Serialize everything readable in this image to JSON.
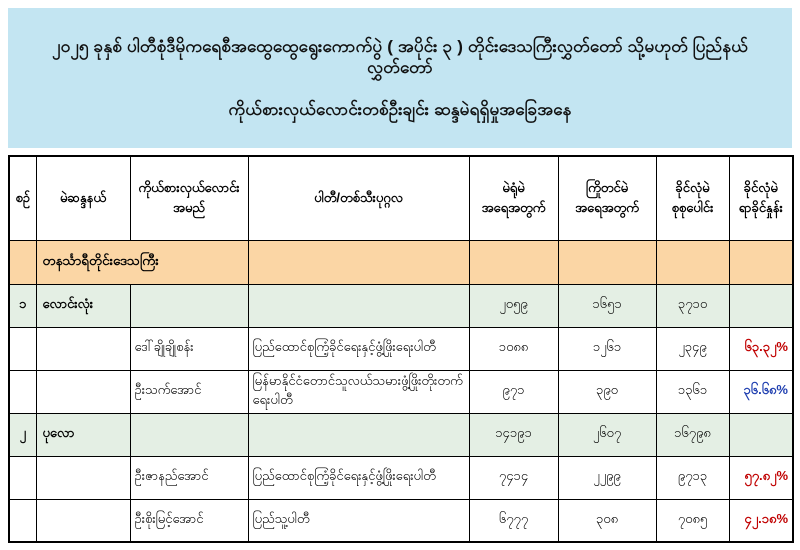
{
  "title": {
    "line1": "၂၀၂၅ ခုနှစ် ပါတီစုံဒီမိုကရေစီအထွေထွေရွေးကောက်ပွဲ ( အပိုင်း ၃ ) တိုင်းဒေသကြီးလွှတ်တော် သို့မဟုတ် ပြည်နယ်လွှတ်တော်",
    "line2": "ကိုယ်စားလှယ်လောင်းတစ်ဦးချင်း ဆန္ဒမဲရရှိမှုအခြေအနေ"
  },
  "table": {
    "headers": [
      {
        "line1": "စဉ်",
        "line2": ""
      },
      {
        "line1": "မဲဆန္ဒနယ်",
        "line2": ""
      },
      {
        "line1": "ကိုယ်စားလှယ်လောင်း",
        "line2": "အမည်"
      },
      {
        "line1": "ပါတီ/တစ်သီးပုဂ္ဂလ",
        "line2": ""
      },
      {
        "line1": "မဲရုံမဲ",
        "line2": "အရေအတွက်"
      },
      {
        "line1": "ကြိုတင်မဲ",
        "line2": "အရေအတွက်"
      },
      {
        "line1": "ခိုင်လုံမဲ",
        "line2": "စုစုပေါင်း"
      },
      {
        "line1": "ခိုင်လုံမဲ",
        "line2": "ရာခိုင်နှုန်း"
      }
    ],
    "region_label": "တနင်္သာရီတိုင်းဒေသကြီး",
    "rows": [
      {
        "no": "၁",
        "constituency": "လောင်းလုံး",
        "name": "",
        "party": "",
        "booth_votes": "၂၀၅၉",
        "advance_votes": "၁၆၅၁",
        "valid_total": "၃၇၁၀",
        "pct": "",
        "pct_color": ""
      },
      {
        "no": "",
        "constituency": "",
        "name": "ဒေါ်ချိုချိုစန်း",
        "party": "ပြည်ထောင်စုကြံ့ခိုင်ရေးနှင့်ဖွံ့ဖြိုးရေးပါတီ",
        "booth_votes": "၁၀၈၈",
        "advance_votes": "၁၂၆၁",
        "valid_total": "၂၃၄၉",
        "pct": "၆၃.၃၂%",
        "pct_color": "pct_red"
      },
      {
        "no": "",
        "constituency": "",
        "name": "ဦးသက်အောင်",
        "party": "မြန်မာနိုင်ငံတောင်သူလယ်သမားဖွံ့ဖြိုးတိုးတက်ရေးပါတီ",
        "booth_votes": "၉၇၁",
        "advance_votes": "၃၉၀",
        "valid_total": "၁၃၆၁",
        "pct": "၃၆.၆၈%",
        "pct_color": "pct_blue"
      },
      {
        "no": "၂",
        "constituency": "ပုလော",
        "name": "",
        "party": "",
        "booth_votes": "၁၄၁၉၁",
        "advance_votes": "၂၆၀၇",
        "valid_total": "၁၆၇၉၈",
        "pct": "",
        "pct_color": ""
      },
      {
        "no": "",
        "constituency": "",
        "name": "ဦးဇာနည်အောင်",
        "party": "ပြည်ထောင်စုကြံ့ခိုင်ရေးနှင့်ဖွံ့ဖြိုးရေးပါတီ",
        "booth_votes": "၇၄၁၄",
        "advance_votes": "၂၂၉၉",
        "valid_total": "၉၇၁၃",
        "pct": "၅၇.၈၂%",
        "pct_color": "pct_red"
      },
      {
        "no": "",
        "constituency": "",
        "name": "ဦးစိုးမြင့်အောင်",
        "party": "ပြည်သူ့ပါတီ",
        "booth_votes": "၆၇၇၇",
        "advance_votes": "၃၀၈",
        "valid_total": "၇၀၈၅",
        "pct": "၄၂.၁၈%",
        "pct_color": "pct_red"
      }
    ]
  },
  "colors": {
    "header_band": "#c3e5f2",
    "region_row": "#fbd6a5",
    "constituency_row": "#e4efe4",
    "pct_red": "#c00000",
    "pct_blue": "#1f3fb0",
    "border": "#000000"
  }
}
